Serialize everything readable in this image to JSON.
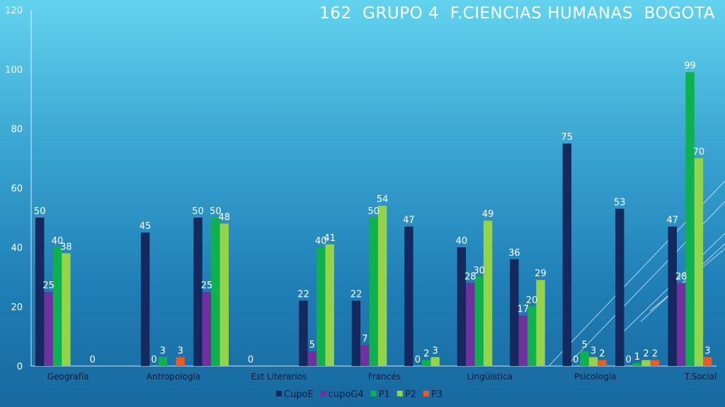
{
  "title": "162  GRUPO 4  F.CIENCIAS HUMANAS  BOGOTA",
  "chart_data": {
    "type": "bar",
    "categories": [
      "Geografía",
      "",
      "Antropología",
      "",
      "Est Literarios",
      "",
      "Francés",
      "",
      "Lingüística",
      "",
      "Psicología",
      "",
      "T.Social"
    ],
    "category_labels_shown": [
      "Geografía",
      "Antropología",
      "Est Literarios",
      "Francés",
      "Lingüística",
      "Psicología",
      "T.Social"
    ],
    "series": [
      {
        "name": "CupoE",
        "color": "#14295e",
        "values": [
          50,
          0,
          45,
          50,
          0,
          22,
          22,
          47,
          40,
          36,
          75,
          53,
          47
        ]
      },
      {
        "name": "cupoG4",
        "color": "#7030a0",
        "values": [
          25,
          null,
          0,
          25,
          null,
          5,
          7,
          0,
          28,
          17,
          0,
          0,
          28
        ]
      },
      {
        "name": "P1",
        "color": "#0fb14e",
        "values": [
          40,
          null,
          3,
          50,
          null,
          40,
          50,
          2,
          30,
          20,
          5,
          1,
          99
        ]
      },
      {
        "name": "P2",
        "color": "#94d34a",
        "values": [
          38,
          null,
          null,
          48,
          null,
          41,
          54,
          3,
          49,
          29,
          3,
          2,
          70
        ]
      },
      {
        "name": "P3",
        "color": "#ee5a24",
        "values": [
          null,
          null,
          3,
          null,
          null,
          null,
          null,
          null,
          null,
          null,
          2,
          2,
          3
        ]
      }
    ],
    "ylim": [
      0,
      120
    ],
    "yticks": [
      0,
      20,
      40,
      60,
      80,
      100,
      120
    ],
    "legend_position": "bottom",
    "grid": false
  }
}
